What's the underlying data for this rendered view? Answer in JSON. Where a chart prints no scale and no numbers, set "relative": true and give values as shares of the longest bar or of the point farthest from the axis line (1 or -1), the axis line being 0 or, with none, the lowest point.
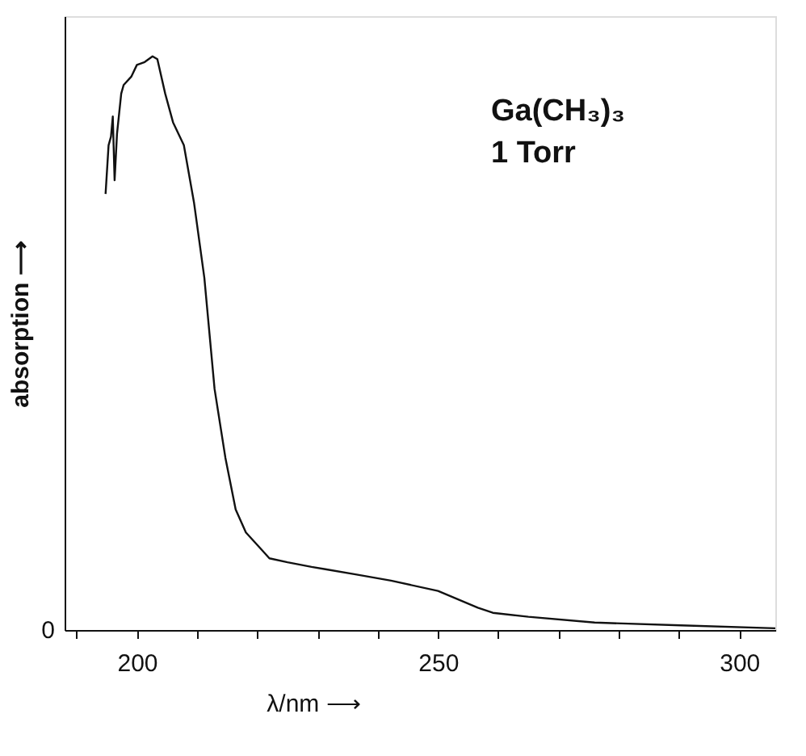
{
  "chart_data": {
    "type": "line",
    "relative": true,
    "xlabel": "λ/nm ⟶",
    "ylabel": "absorption ⟶",
    "xlim": [
      188,
      306
    ],
    "xticks": [
      {
        "value": 190,
        "label": null
      },
      200,
      {
        "value": 210,
        "label": null
      },
      {
        "value": 220,
        "label": null
      },
      {
        "value": 230,
        "label": null
      },
      {
        "value": 240,
        "label": null
      },
      250,
      {
        "value": 260,
        "label": null
      },
      {
        "value": 270,
        "label": null
      },
      {
        "value": 280,
        "label": null
      },
      {
        "value": 290,
        "label": null
      },
      300
    ],
    "series": [
      {
        "color": "#111111",
        "x": [
          194.8,
          195.3,
          195.7,
          196.0,
          196.3,
          196.7,
          197.4,
          197.8,
          199.1,
          200.0,
          201.3,
          202.6,
          203.4,
          204.7,
          206.0,
          207.8,
          209.5,
          211.2,
          212.9,
          214.7,
          216.4,
          218.1,
          220.7,
          222.0,
          225.0,
          229.0,
          231.3,
          236.3,
          242.2,
          250.0,
          256.6,
          259.1,
          265.0,
          276.0,
          290.3,
          306.0
        ],
        "values": [
          0.76,
          0.845,
          0.86,
          0.895,
          0.784,
          0.865,
          0.935,
          0.95,
          0.965,
          0.985,
          0.99,
          1.0,
          0.995,
          0.935,
          0.885,
          0.845,
          0.744,
          0.614,
          0.42,
          0.3,
          0.21,
          0.17,
          0.14,
          0.125,
          0.118,
          0.11,
          0.106,
          0.097,
          0.086,
          0.068,
          0.039,
          0.03,
          0.023,
          0.013,
          0.008,
          0.003
        ]
      }
    ],
    "annotations": [
      "Ga(CH₃)₃",
      "1  Torr",
      "0"
    ],
    "grid": false
  }
}
